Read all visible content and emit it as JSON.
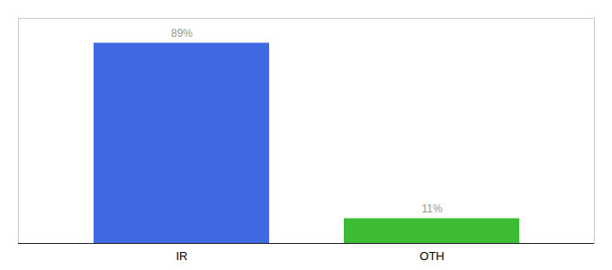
{
  "chart_data": {
    "type": "bar",
    "categories": [
      "IR",
      "OTH"
    ],
    "values": [
      89,
      11
    ],
    "colors": [
      "#4169e1",
      "#3dbb35"
    ],
    "value_labels": [
      "89%",
      "11%"
    ],
    "data_labels": true,
    "ylim": [
      0,
      100
    ],
    "tick_labels": "x",
    "grid": false
  }
}
